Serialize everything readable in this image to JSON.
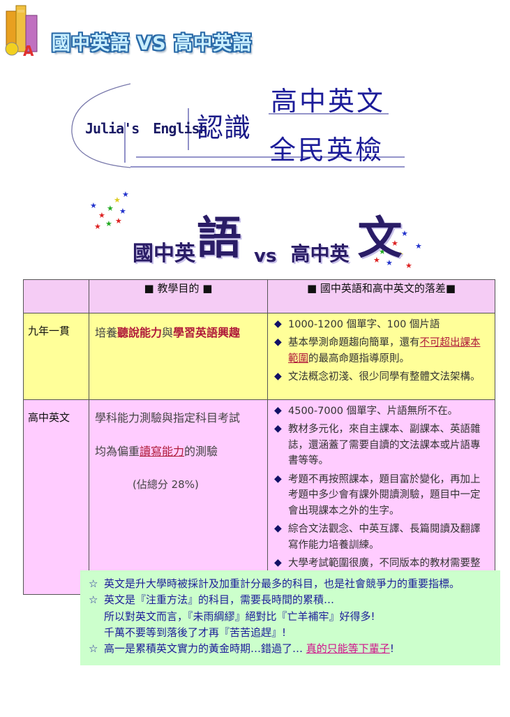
{
  "header": {
    "banner_title": "國中英語 VS 高中英語"
  },
  "logo": {
    "julia": "Julia's",
    "english": "English",
    "renshi": "認識",
    "high_school_english": "高中英文",
    "gept": "全民英檢"
  },
  "headline": {
    "part_a": "國中英",
    "big_a": "語",
    "vs": "vs",
    "part_b": "高中英",
    "big_b": "文"
  },
  "table": {
    "header_goal": "■ 教學目的 ■",
    "header_gap": "■ 國中英語和高中英文的落差■",
    "row1": {
      "label": "九年一貫",
      "goal_pre": "培養",
      "goal_hl1": "聽說能力",
      "goal_mid": "與",
      "goal_hl2": "學習英語興趣",
      "gaps": {
        "g1": "1000-1200 個單字、100 個片語",
        "g2_pre": "基本學測命題趨向簡單，還有",
        "g2_red": "不可超出課",
        "g2_red2": "本範圍",
        "g2_post": "的最高命題指導原則。",
        "g3": "文法概念初淺、很少同學有整體文法架構。"
      }
    },
    "row2": {
      "label": "高中英文",
      "goal_line1": "學科能力測驗與指定科目考試",
      "goal_line2_pre": "均為偏重",
      "goal_line2_ul": "讀寫能力",
      "goal_line2_post": "的測驗",
      "goal_pct": "(佔總分 28%)",
      "gaps": [
        "4500-7000 個單字、片語無所不在。",
        "教材多元化，來自主課本、副課本、英語雜誌，還涵蓋了需要自讀的文法課本或片語專書等等。",
        "考題不再按照課本，題目富於變化，再加上考題中多少會有課外閱讀測驗，題目中一定會出現課本之外的生字。",
        "綜合文法觀念、中英互譯、長篇閱讀及翻譯寫作能力培養訓練。",
        "大學考試範圍很廣，不同版本的教材需要整合，歷屆的考題必須完整地收集。"
      ]
    }
  },
  "notes": {
    "n1": "英文是升大學時被採計及加重計分最多的科目，也是社會競爭力的重要指標。",
    "n2": "英文是『注重方法』的科目，需要長時間的累積…",
    "n2_sub1": "所以對英文而言，『未雨綢繆』絕對比『亡羊補牢』好得多!",
    "n2_sub2": "千萬不要等到落後了才再『苦苦追趕』!",
    "n3_pre": "高一是累積英文實力的黃金時期…錯過了…",
    "n3_pink": "真的只能等下輩子",
    "n3_post": "!"
  },
  "icons": {
    "bullet": "◆",
    "note_star": "☆"
  }
}
